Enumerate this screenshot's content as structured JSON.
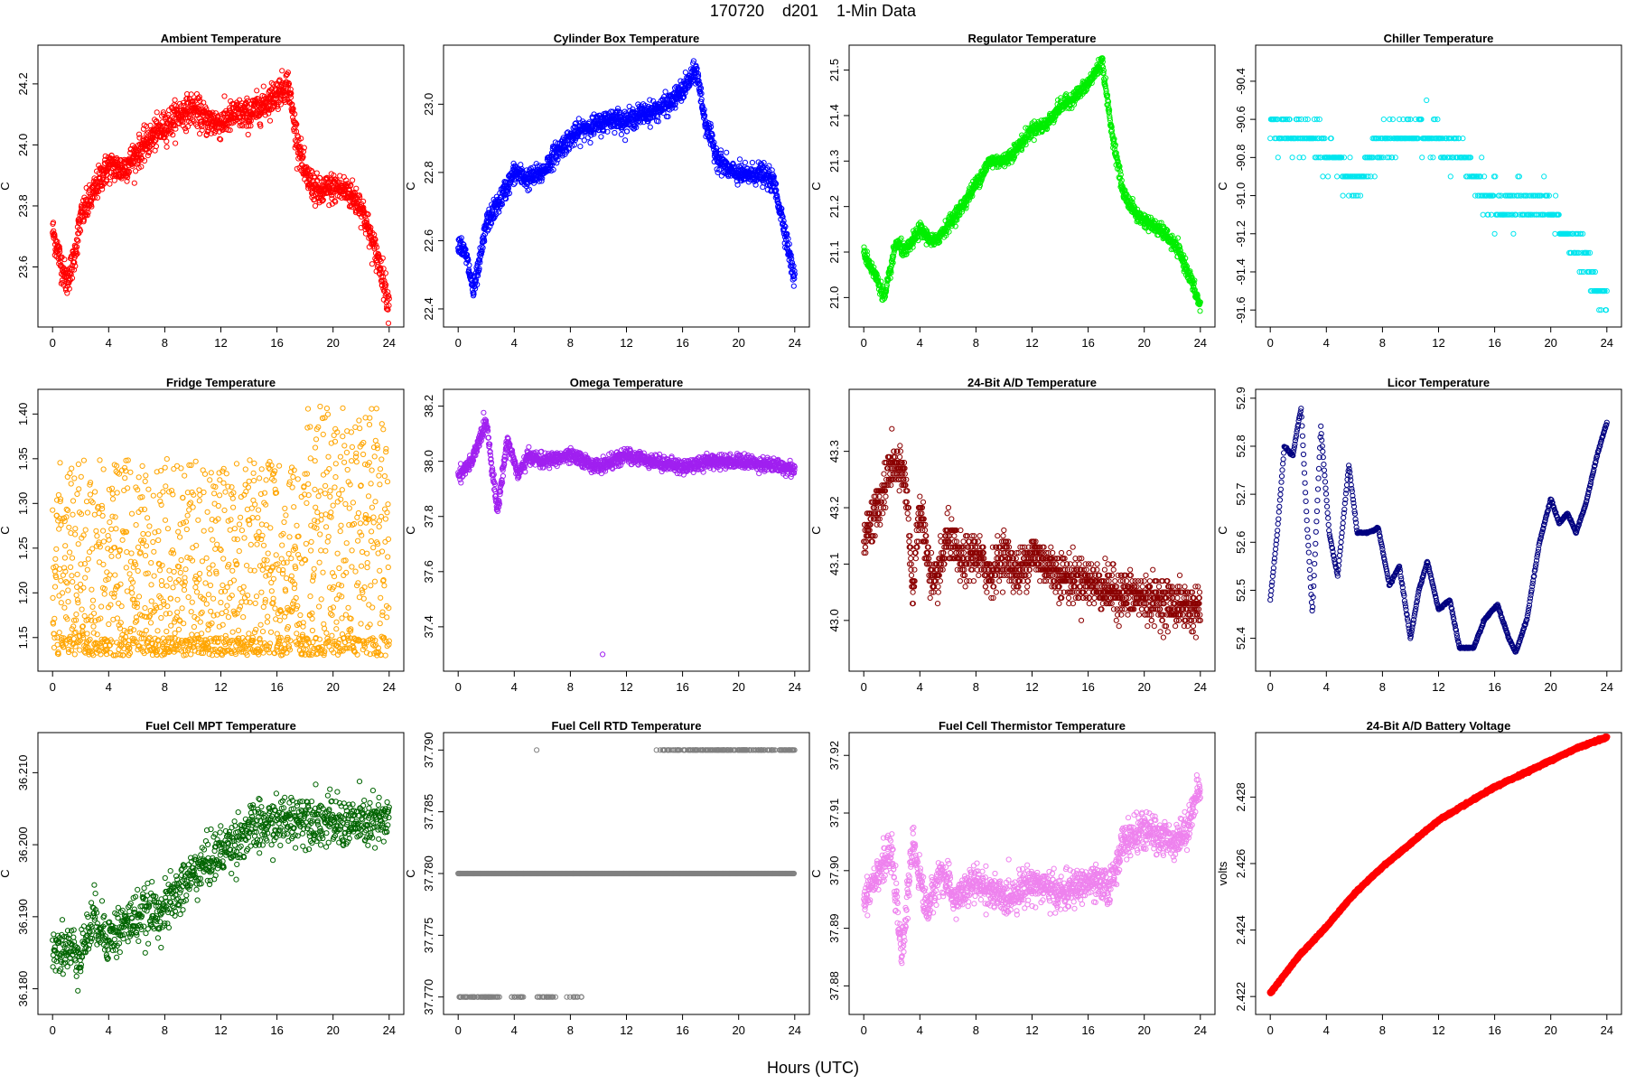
{
  "title": "170720    d201    1-Min Data",
  "xlabel": "Hours (UTC)",
  "chart_data": [
    {
      "type": "scatter",
      "title": "Ambient Temperature",
      "ylabel": "C",
      "color": "#ff0000",
      "xlim": [
        0,
        24
      ],
      "ylim": [
        23.44,
        24.29
      ],
      "yticks": [
        23.6,
        23.8,
        24.0,
        24.2
      ],
      "yformat": 1,
      "xticks": [
        0,
        4,
        8,
        12,
        16,
        20,
        24
      ],
      "trend": [
        [
          0,
          23.72
        ],
        [
          0.5,
          23.63
        ],
        [
          1,
          23.55
        ],
        [
          1.5,
          23.62
        ],
        [
          2,
          23.76
        ],
        [
          2.8,
          23.83
        ],
        [
          3.5,
          23.9
        ],
        [
          4,
          23.93
        ],
        [
          5,
          23.92
        ],
        [
          6,
          23.97
        ],
        [
          7,
          24.02
        ],
        [
          8,
          24.06
        ],
        [
          9,
          24.1
        ],
        [
          10,
          24.12
        ],
        [
          11,
          24.08
        ],
        [
          12,
          24.07
        ],
        [
          13,
          24.1
        ],
        [
          14,
          24.1
        ],
        [
          15,
          24.13
        ],
        [
          16,
          24.17
        ],
        [
          16.8,
          24.2
        ],
        [
          17.3,
          24.05
        ],
        [
          18,
          23.9
        ],
        [
          19,
          23.84
        ],
        [
          20,
          23.86
        ],
        [
          21,
          23.85
        ],
        [
          22,
          23.8
        ],
        [
          22.8,
          23.68
        ],
        [
          23.5,
          23.58
        ],
        [
          24,
          23.47
        ]
      ],
      "noise": 0.05,
      "n": 1440
    },
    {
      "type": "scatter",
      "title": "Cylinder Box Temperature",
      "ylabel": "C",
      "color": "#0000ff",
      "xlim": [
        0,
        24
      ],
      "ylim": [
        22.38,
        23.14
      ],
      "yticks": [
        22.4,
        22.6,
        22.8,
        23.0
      ],
      "yformat": 1,
      "xticks": [
        0,
        4,
        8,
        12,
        16,
        20,
        24
      ],
      "trend": [
        [
          0,
          22.6
        ],
        [
          0.6,
          22.55
        ],
        [
          1.1,
          22.45
        ],
        [
          1.6,
          22.55
        ],
        [
          2,
          22.65
        ],
        [
          3,
          22.72
        ],
        [
          4,
          22.8
        ],
        [
          5,
          22.78
        ],
        [
          6,
          22.8
        ],
        [
          7,
          22.86
        ],
        [
          8,
          22.9
        ],
        [
          9,
          22.93
        ],
        [
          10,
          22.94
        ],
        [
          11,
          22.96
        ],
        [
          12,
          22.95
        ],
        [
          13,
          22.97
        ],
        [
          14,
          22.98
        ],
        [
          15,
          23.0
        ],
        [
          16,
          23.04
        ],
        [
          17,
          23.1
        ],
        [
          17.6,
          22.95
        ],
        [
          18.5,
          22.84
        ],
        [
          19.5,
          22.8
        ],
        [
          20.5,
          22.79
        ],
        [
          21.5,
          22.8
        ],
        [
          22.5,
          22.77
        ],
        [
          23.2,
          22.65
        ],
        [
          24,
          22.48
        ]
      ],
      "noise": 0.03,
      "n": 1440
    },
    {
      "type": "scatter",
      "title": "Regulator Temperature",
      "ylabel": "C",
      "color": "#00ee00",
      "xlim": [
        0,
        24
      ],
      "ylim": [
        20.96,
        21.53
      ],
      "yticks": [
        21.0,
        21.1,
        21.2,
        21.3,
        21.4,
        21.5
      ],
      "yformat": 1,
      "xticks": [
        0,
        4,
        8,
        12,
        16,
        20,
        24
      ],
      "trend": [
        [
          0,
          21.1
        ],
        [
          0.8,
          21.05
        ],
        [
          1.5,
          21.0
        ],
        [
          2.3,
          21.12
        ],
        [
          3,
          21.1
        ],
        [
          4,
          21.15
        ],
        [
          5,
          21.12
        ],
        [
          6,
          21.16
        ],
        [
          7,
          21.2
        ],
        [
          8,
          21.25
        ],
        [
          9,
          21.3
        ],
        [
          10,
          21.3
        ],
        [
          11,
          21.33
        ],
        [
          12,
          21.37
        ],
        [
          13,
          21.38
        ],
        [
          14,
          21.42
        ],
        [
          15,
          21.44
        ],
        [
          16,
          21.47
        ],
        [
          17,
          21.52
        ],
        [
          17.6,
          21.38
        ],
        [
          18.5,
          21.23
        ],
        [
          19.5,
          21.18
        ],
        [
          20.5,
          21.16
        ],
        [
          21.5,
          21.14
        ],
        [
          22.5,
          21.1
        ],
        [
          23.2,
          21.05
        ],
        [
          24,
          20.98
        ]
      ],
      "noise": 0.015,
      "n": 1440
    },
    {
      "type": "scatter",
      "title": "Chiller Temperature",
      "ylabel": "C",
      "color": "#00e5ee",
      "xlim": [
        0,
        24
      ],
      "ylim": [
        -91.63,
        -90.27
      ],
      "yticks": [
        -91.6,
        -91.4,
        -91.2,
        -91.0,
        -90.8,
        -90.6,
        -90.4
      ],
      "yformat": 1,
      "xticks": [
        0,
        4,
        8,
        12,
        16,
        20,
        24
      ],
      "trend": [
        [
          0,
          -90.65
        ],
        [
          3,
          -90.7
        ],
        [
          5,
          -90.85
        ],
        [
          6,
          -90.95
        ],
        [
          8,
          -90.72
        ],
        [
          10,
          -90.68
        ],
        [
          12,
          -90.7
        ],
        [
          14,
          -90.85
        ],
        [
          16,
          -91.05
        ],
        [
          18,
          -91.05
        ],
        [
          20,
          -91.05
        ],
        [
          21,
          -91.2
        ],
        [
          22.5,
          -91.35
        ],
        [
          24,
          -91.55
        ]
      ],
      "noise": 0.1,
      "n": 520,
      "step": 0.1
    },
    {
      "type": "scatter",
      "title": "Fridge Temperature",
      "ylabel": "C",
      "color": "#ffa500",
      "xlim": [
        0,
        24
      ],
      "ylim": [
        1.125,
        1.415
      ],
      "yticks": [
        1.15,
        1.2,
        1.25,
        1.3,
        1.35,
        1.4
      ],
      "yformat": 2,
      "xticks": [
        0,
        4,
        8,
        12,
        16,
        20,
        24
      ],
      "trend": [
        [
          0,
          1.24
        ],
        [
          24,
          1.26
        ]
      ],
      "noise": 0.1,
      "n": 1440,
      "uniform": [
        1.13,
        1.35
      ],
      "uniformLate": [
        1.13,
        1.41
      ]
    },
    {
      "type": "scatter",
      "title": "Omega Temperature",
      "ylabel": "C",
      "color": "#a020f0",
      "xlim": [
        0,
        24
      ],
      "ylim": [
        37.28,
        38.22
      ],
      "yticks": [
        37.4,
        37.6,
        37.8,
        38.0,
        38.2
      ],
      "yformat": 1,
      "xticks": [
        0,
        4,
        8,
        12,
        16,
        20,
        24
      ],
      "trend": [
        [
          0,
          37.95
        ],
        [
          1,
          38.0
        ],
        [
          2,
          38.15
        ],
        [
          2.8,
          37.82
        ],
        [
          3.5,
          38.08
        ],
        [
          4.3,
          37.95
        ],
        [
          5,
          38.02
        ],
        [
          6,
          38.0
        ],
        [
          8,
          38.02
        ],
        [
          10,
          37.98
        ],
        [
          12,
          38.02
        ],
        [
          14,
          38.0
        ],
        [
          16,
          37.98
        ],
        [
          18,
          38.0
        ],
        [
          20,
          38.0
        ],
        [
          22,
          37.99
        ],
        [
          24,
          37.97
        ]
      ],
      "noise": 0.025,
      "n": 1440,
      "outliers": [
        [
          10.3,
          37.3
        ]
      ]
    },
    {
      "type": "scatter",
      "title": "24-Bit A/D Temperature",
      "ylabel": "C",
      "color": "#8b0000",
      "xlim": [
        0,
        24
      ],
      "ylim": [
        42.93,
        43.39
      ],
      "yticks": [
        43.0,
        43.1,
        43.2,
        43.3
      ],
      "yformat": 1,
      "xticks": [
        0,
        4,
        8,
        12,
        16,
        20,
        24
      ],
      "trend": [
        [
          0,
          43.15
        ],
        [
          1,
          43.2
        ],
        [
          2,
          43.28
        ],
        [
          3,
          43.25
        ],
        [
          3.5,
          43.05
        ],
        [
          4,
          43.2
        ],
        [
          5,
          43.05
        ],
        [
          6,
          43.15
        ],
        [
          7,
          43.1
        ],
        [
          8,
          43.12
        ],
        [
          9,
          43.08
        ],
        [
          10,
          43.12
        ],
        [
          11,
          43.08
        ],
        [
          12,
          43.12
        ],
        [
          14,
          43.08
        ],
        [
          16,
          43.07
        ],
        [
          18,
          43.05
        ],
        [
          20,
          43.04
        ],
        [
          22,
          43.03
        ],
        [
          24,
          43.02
        ]
      ],
      "noise": 0.04,
      "n": 1440,
      "step": 0.01
    },
    {
      "type": "scatter",
      "title": "Licor Temperature",
      "ylabel": "C",
      "color": "#000080",
      "xlim": [
        0,
        24
      ],
      "ylim": [
        52.355,
        52.895
      ],
      "yticks": [
        52.4,
        52.5,
        52.6,
        52.7,
        52.8,
        52.9
      ],
      "yformat": 1,
      "xticks": [
        0,
        4,
        8,
        12,
        16,
        20,
        24
      ],
      "trend": [
        [
          0,
          52.48
        ],
        [
          0.5,
          52.62
        ],
        [
          1,
          52.8
        ],
        [
          1.6,
          52.78
        ],
        [
          2.2,
          52.88
        ],
        [
          2.6,
          52.65
        ],
        [
          3,
          52.45
        ],
        [
          3.6,
          52.84
        ],
        [
          4.2,
          52.62
        ],
        [
          4.8,
          52.53
        ],
        [
          5.6,
          52.76
        ],
        [
          6.2,
          52.62
        ],
        [
          7,
          52.62
        ],
        [
          7.7,
          52.63
        ],
        [
          8.5,
          52.51
        ],
        [
          9.2,
          52.55
        ],
        [
          10,
          52.4
        ],
        [
          10.6,
          52.5
        ],
        [
          11.2,
          52.56
        ],
        [
          12,
          52.46
        ],
        [
          12.8,
          52.48
        ],
        [
          13.5,
          52.38
        ],
        [
          14.5,
          52.38
        ],
        [
          15.3,
          52.44
        ],
        [
          16.2,
          52.47
        ],
        [
          17,
          52.4
        ],
        [
          17.5,
          52.37
        ],
        [
          18.3,
          52.44
        ],
        [
          19.2,
          52.6
        ],
        [
          20,
          52.69
        ],
        [
          20.6,
          52.64
        ],
        [
          21.2,
          52.66
        ],
        [
          21.8,
          52.62
        ],
        [
          22.5,
          52.68
        ],
        [
          23.3,
          52.78
        ],
        [
          24,
          52.85
        ]
      ],
      "noise": 0.002,
      "n": 700
    },
    {
      "type": "scatter",
      "title": "Fuel Cell MPT Temperature",
      "ylabel": "C",
      "color": "#006400",
      "xlim": [
        0,
        24
      ],
      "ylim": [
        36.178,
        36.214
      ],
      "yticks": [
        36.18,
        36.19,
        36.2,
        36.21
      ],
      "yformat": 3,
      "xticks": [
        0,
        4,
        8,
        12,
        16,
        20,
        24
      ],
      "trend": [
        [
          0,
          36.186
        ],
        [
          2,
          36.185
        ],
        [
          3,
          36.19
        ],
        [
          4,
          36.187
        ],
        [
          6,
          36.19
        ],
        [
          8,
          36.191
        ],
        [
          10,
          36.196
        ],
        [
          12,
          36.199
        ],
        [
          14,
          36.202
        ],
        [
          16,
          36.203
        ],
        [
          18,
          36.204
        ],
        [
          20,
          36.203
        ],
        [
          22,
          36.203
        ],
        [
          24,
          36.203
        ]
      ],
      "noise": 0.0035,
      "n": 1000
    },
    {
      "type": "scatter",
      "title": "Fuel Cell RTD Temperature",
      "ylabel": "C",
      "color": "#808080",
      "xlim": [
        0,
        24
      ],
      "ylim": [
        37.7695,
        37.7905
      ],
      "yticks": [
        37.77,
        37.775,
        37.78,
        37.785,
        37.79
      ],
      "yformat": 3,
      "xticks": [
        0,
        4,
        8,
        12,
        16,
        20,
        24
      ],
      "levels": true,
      "n": 0
    },
    {
      "type": "scatter",
      "title": "Fuel Cell Thermistor Temperature",
      "ylabel": "C",
      "color": "#ee82ee",
      "xlim": [
        0,
        24
      ],
      "ylim": [
        37.877,
        37.922
      ],
      "yticks": [
        37.88,
        37.89,
        37.9,
        37.91,
        37.92
      ],
      "yformat": 2,
      "xticks": [
        0,
        4,
        8,
        12,
        16,
        20,
        24
      ],
      "trend": [
        [
          0,
          37.895
        ],
        [
          1,
          37.9
        ],
        [
          2,
          37.903
        ],
        [
          2.7,
          37.885
        ],
        [
          3.5,
          37.905
        ],
        [
          4.5,
          37.893
        ],
        [
          5.5,
          37.9
        ],
        [
          6.5,
          37.895
        ],
        [
          8,
          37.898
        ],
        [
          10,
          37.895
        ],
        [
          12,
          37.898
        ],
        [
          14,
          37.896
        ],
        [
          16,
          37.898
        ],
        [
          17.5,
          37.897
        ],
        [
          18.5,
          37.905
        ],
        [
          20,
          37.907
        ],
        [
          22,
          37.905
        ],
        [
          23,
          37.907
        ],
        [
          24,
          37.915
        ]
      ],
      "noise": 0.003,
      "n": 1440
    },
    {
      "type": "scatter",
      "title": "24-Bit A/D Battery Voltage",
      "ylabel": "volts",
      "color": "#ff0000",
      "xlim": [
        0,
        24
      ],
      "ylim": [
        2.4218,
        2.4296
      ],
      "yticks": [
        2.422,
        2.424,
        2.426,
        2.428
      ],
      "yformat": 3,
      "xticks": [
        0,
        4,
        8,
        12,
        16,
        20,
        24
      ],
      "trend": [
        [
          0,
          2.4221
        ],
        [
          2,
          2.4232
        ],
        [
          4,
          2.4241
        ],
        [
          6,
          2.4251
        ],
        [
          8,
          2.4259
        ],
        [
          10,
          2.4266
        ],
        [
          12,
          2.4273
        ],
        [
          14,
          2.4278
        ],
        [
          16,
          2.4283
        ],
        [
          18,
          2.4287
        ],
        [
          20,
          2.4291
        ],
        [
          22,
          2.4295
        ],
        [
          24,
          2.4298
        ]
      ],
      "noise": 3e-05,
      "n": 1440,
      "thick": true
    }
  ]
}
